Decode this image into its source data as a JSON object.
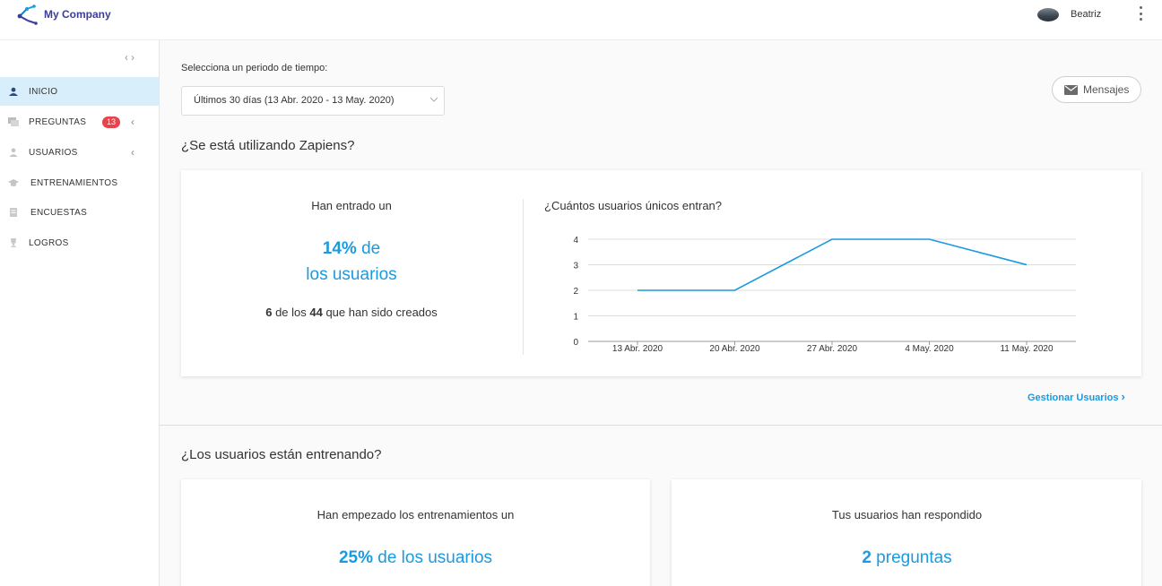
{
  "header": {
    "company": "My Company",
    "user_name": "Beatriz",
    "logo_icon": "network-share-icon",
    "menu_icon": "kebab-menu-icon"
  },
  "sidebar": {
    "collapse_icon": "chevron-left-right-icon",
    "items": [
      {
        "label": "INICIO",
        "icon": "home-user-icon",
        "active": true
      },
      {
        "label": "PREGUNTAS",
        "icon": "chat-icon",
        "badge": "13",
        "expandable": true
      },
      {
        "label": "USUARIOS",
        "icon": "user-icon",
        "expandable": true
      },
      {
        "label": "ENTRENAMIENTOS",
        "icon": "graduation-cap-icon"
      },
      {
        "label": "ENCUESTAS",
        "icon": "clipboard-icon"
      },
      {
        "label": "LOGROS",
        "icon": "trophy-icon"
      }
    ]
  },
  "period": {
    "label": "Selecciona un periodo de tiempo:",
    "selected": "Últimos 30 días (13 Abr. 2020 - 13 May. 2020)"
  },
  "messages_button": "Mensajes",
  "usage": {
    "title": "¿Se está utilizando Zapiens?",
    "head": "Han entrado un",
    "percent": "14%",
    "percent_suffix": " de",
    "line2": "los usuarios",
    "count_active": "6",
    "count_mid": " de los ",
    "count_total": "44",
    "count_suffix": " que han sido creados",
    "chart_title": "¿Cuántos usuarios únicos entran?",
    "manage_link": "Gestionar Usuarios"
  },
  "training": {
    "title": "¿Los usuarios están entrenando?",
    "left_head": "Han empezado los entrenamientos un",
    "left_value": "25%",
    "left_suffix": " de los usuarios",
    "right_head": "Tus usuarios han respondido",
    "right_value": "2",
    "right_suffix": " preguntas"
  },
  "colors": {
    "accent": "#1a9ae0",
    "badge": "#e6434c",
    "active_bg": "#d9eefb"
  },
  "chart_data": {
    "type": "line",
    "x": [
      "13 Abr. 2020",
      "20 Abr. 2020",
      "27 Abr. 2020",
      "4 May. 2020",
      "11 May. 2020"
    ],
    "series": [
      {
        "values": [
          2,
          2,
          4,
          4,
          3
        ]
      }
    ],
    "ylim": [
      0,
      4
    ],
    "yticks": [
      0,
      1,
      2,
      3,
      4
    ],
    "grid": true,
    "title": "¿Cuántos usuarios únicos entran?"
  }
}
